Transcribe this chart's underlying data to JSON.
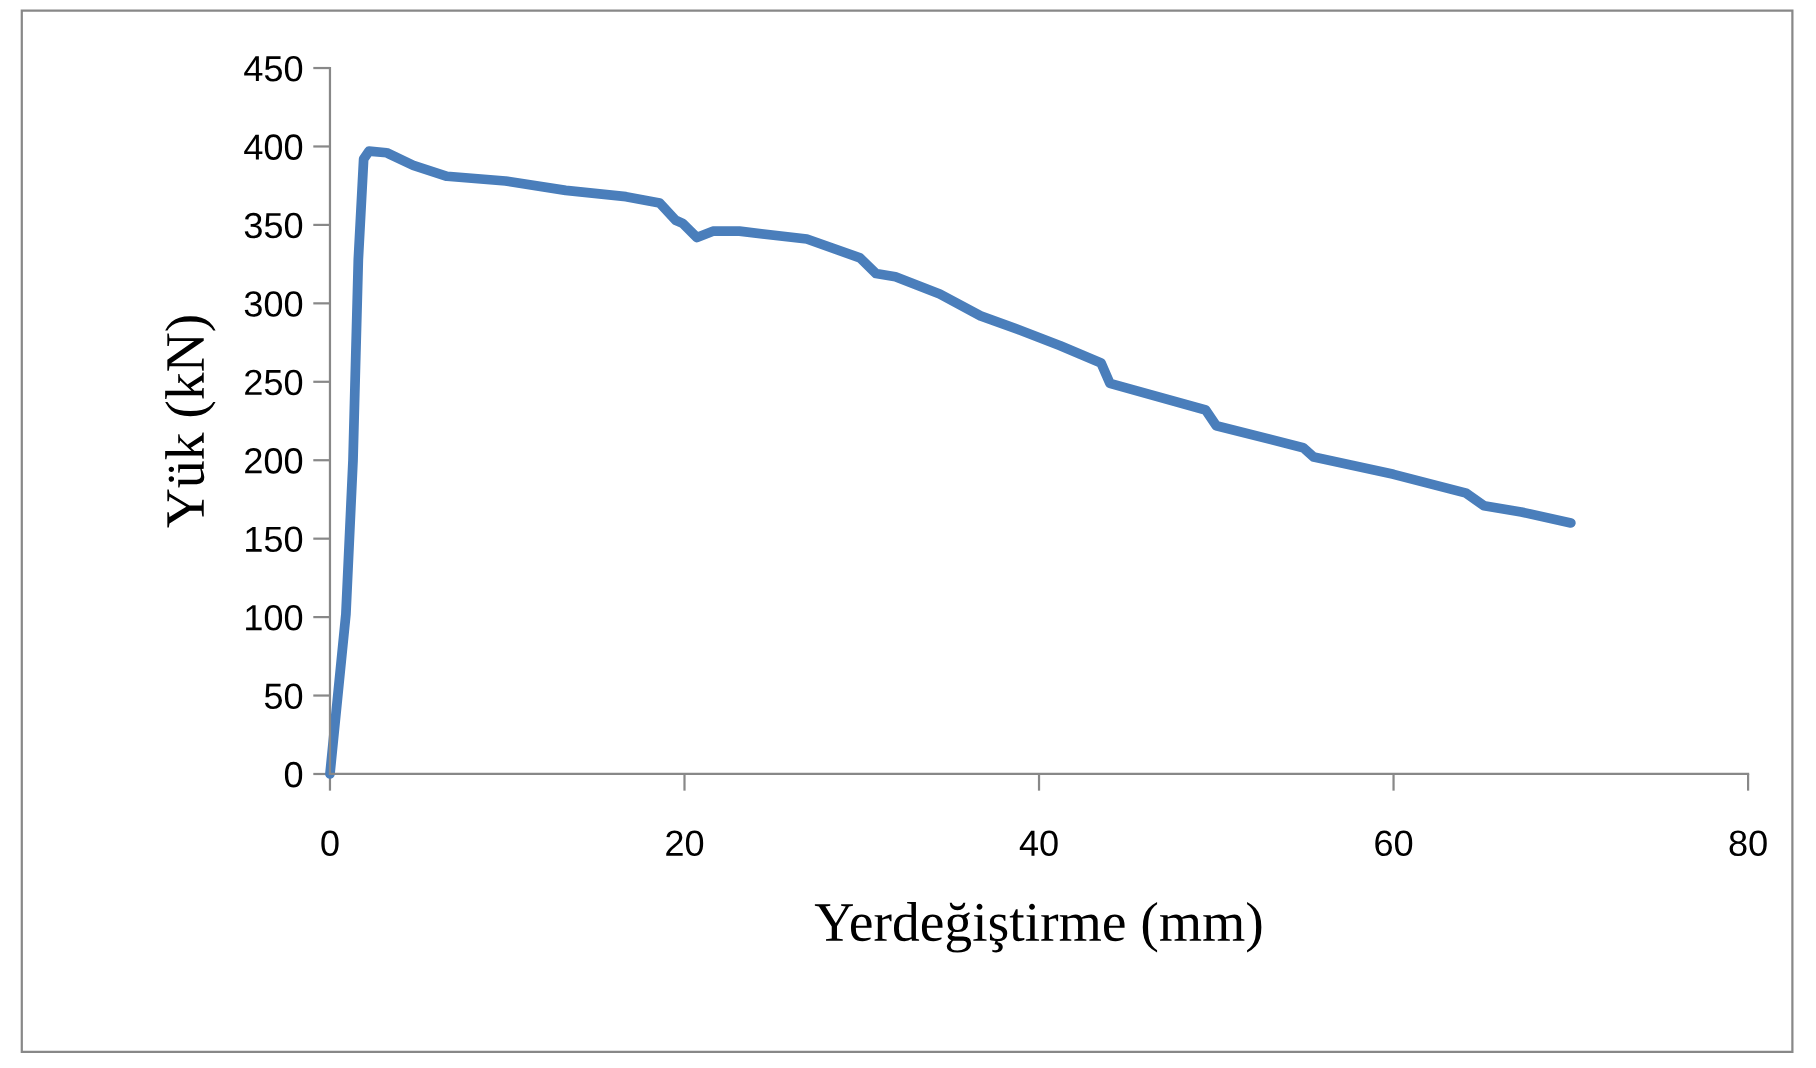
{
  "chart_data": {
    "type": "line",
    "xlabel": "Yerdeğiştirme (mm)",
    "ylabel": "Yük (kN)",
    "xlim": [
      0,
      80
    ],
    "xticks": [
      0,
      20,
      40,
      60,
      80
    ],
    "ylim": [
      0,
      450
    ],
    "yticks": [
      0,
      50,
      100,
      150,
      200,
      250,
      300,
      350,
      400,
      450
    ],
    "marker": "none",
    "line_style": "solid",
    "series": [
      {
        "color": "#4a7ebb",
        "x": [
          0,
          0.9,
          1.3,
          1.6,
          1.9,
          2.2,
          3.2,
          4.7,
          6.6,
          9.9,
          13.3,
          16.7,
          18.6,
          19.5,
          19.9,
          20.7,
          21.6,
          23.1,
          26.9,
          29.9,
          30.8,
          31.9,
          34.4,
          36.7,
          38.9,
          41.2,
          43.5,
          44.0,
          49.4,
          50.0,
          54.9,
          55.5,
          60.0,
          64.1,
          65.1,
          67.2,
          70.0
        ],
        "values": [
          0,
          102,
          200,
          328,
          392,
          397,
          396,
          388,
          381,
          378,
          372,
          368,
          364,
          353,
          351,
          342,
          346,
          346,
          341,
          329,
          319,
          317,
          306,
          292,
          283,
          273,
          262,
          249,
          232,
          222,
          208,
          202,
          191,
          179,
          171,
          167,
          160
        ]
      }
    ]
  }
}
